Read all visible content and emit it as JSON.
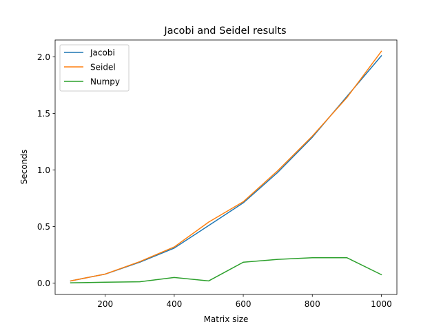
{
  "chart_data": {
    "type": "line",
    "title": "Jacobi and Seidel results",
    "xlabel": "Matrix size",
    "ylabel": "Seconds",
    "xlim": [
      55,
      1045
    ],
    "ylim": [
      -0.1,
      2.15
    ],
    "xticks": [
      200,
      400,
      600,
      800,
      1000
    ],
    "yticks": [
      0.0,
      0.5,
      1.0,
      1.5,
      2.0
    ],
    "xtick_labels": [
      "200",
      "400",
      "600",
      "800",
      "1000"
    ],
    "ytick_labels": [
      "0.0",
      "0.5",
      "1.0",
      "1.5",
      "2.0"
    ],
    "legend_position": "upper-left",
    "grid": false,
    "x": [
      100,
      200,
      300,
      400,
      500,
      600,
      700,
      800,
      900,
      1000
    ],
    "series": [
      {
        "name": "Jacobi",
        "color": "#1f77b4",
        "values": [
          0.02,
          0.08,
          0.185,
          0.31,
          0.51,
          0.71,
          0.98,
          1.29,
          1.65,
          2.01
        ]
      },
      {
        "name": "Seidel",
        "color": "#ff7f0e",
        "values": [
          0.02,
          0.08,
          0.19,
          0.32,
          0.54,
          0.72,
          0.995,
          1.3,
          1.64,
          2.05
        ]
      },
      {
        "name": "Numpy",
        "color": "#2ca02c",
        "values": [
          0.003,
          0.008,
          0.012,
          0.05,
          0.02,
          0.185,
          0.21,
          0.225,
          0.225,
          0.075
        ]
      }
    ]
  }
}
